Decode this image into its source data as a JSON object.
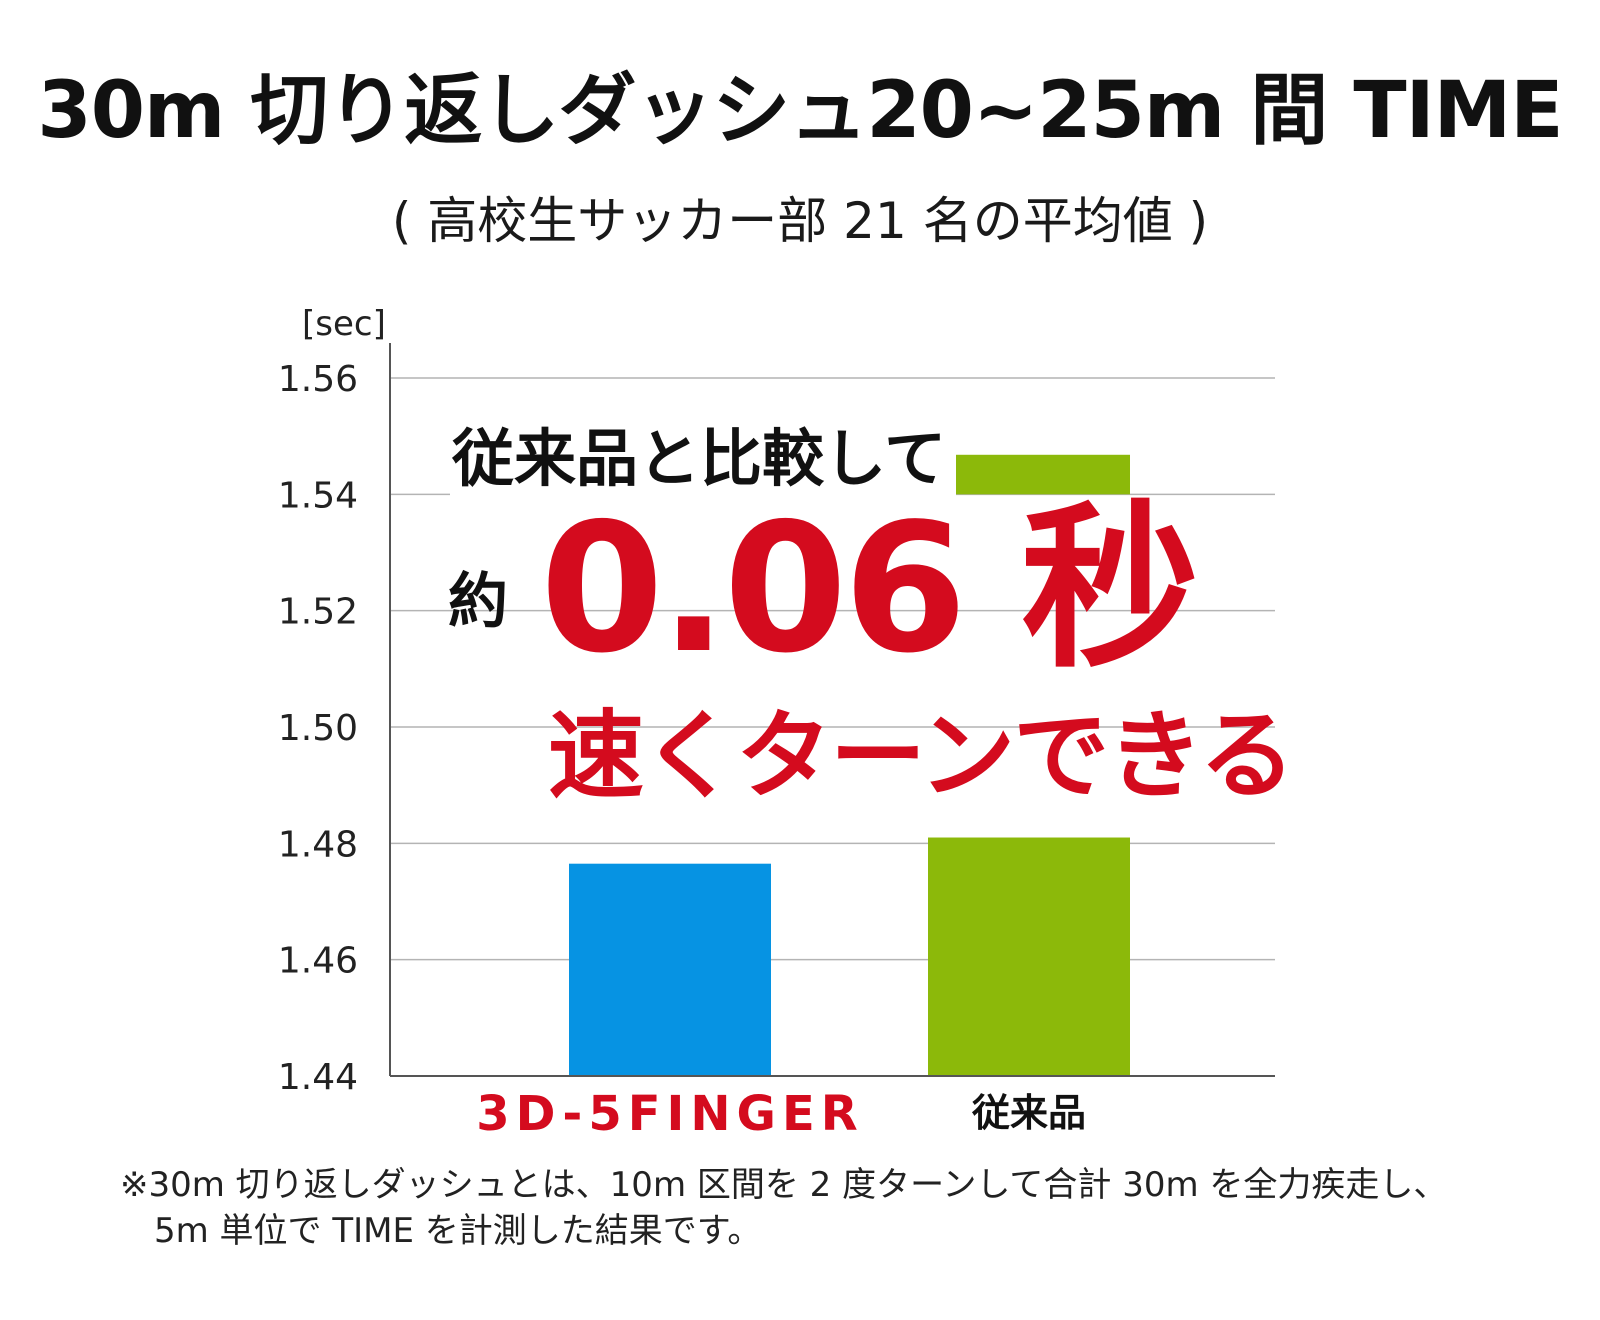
{
  "chart_data": {
    "type": "bar",
    "title": "30m 切り返しダッシュ20~25m 間 TIME",
    "subtitle": "( 高校生サッカー部 21 名の平均値 )",
    "ylabel": "[sec]",
    "xlabel": "",
    "ylim": [
      1.44,
      1.56
    ],
    "yticks": [
      "1.56",
      "1.54",
      "1.52",
      "1.50",
      "1.48",
      "1.46",
      "1.44"
    ],
    "ytick_values": [
      1.56,
      1.54,
      1.52,
      1.5,
      1.48,
      1.46,
      1.44
    ],
    "grid": true,
    "categories": [
      "3D-5FINGER",
      "従来品"
    ],
    "values": [
      1.4765,
      1.481
    ],
    "conventional_top_segment_value": 1.5468,
    "bar_colors": [
      "#0693e3",
      "#8cb90a"
    ],
    "annotations": {
      "compare": "従来品と比較して",
      "approx": "約",
      "value": "0.06 秒",
      "faster": "速くターンできる"
    }
  },
  "note": {
    "line1": "※30m 切り返しダッシュとは、10m 区間を 2 度ターンして合計 30m を全力疾走し、",
    "line2": "5m 単位で TIME を計測した結果です。"
  },
  "colors": {
    "accent_red": "#d40b1e",
    "bar_blue": "#0693e3",
    "bar_green": "#8cb90a",
    "grid": "#b4b4b4",
    "axis": "#555555"
  }
}
